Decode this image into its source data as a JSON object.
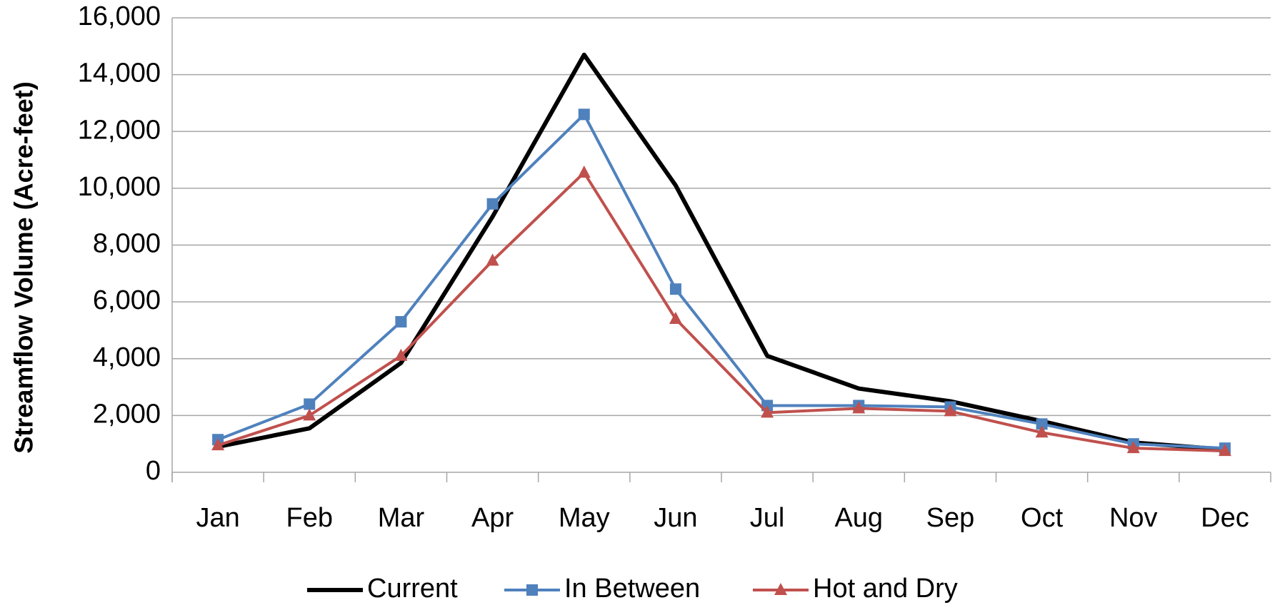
{
  "chart_data": {
    "type": "line",
    "y_label": "Streamflow Volume (Acre-feet)",
    "categories": [
      "Jan",
      "Feb",
      "Mar",
      "Apr",
      "May",
      "Jun",
      "Jul",
      "Aug",
      "Sep",
      "Oct",
      "Nov",
      "Dec"
    ],
    "series": [
      {
        "name": "Current",
        "color": "#000000",
        "marker": "none",
        "values": [
          900,
          1550,
          3850,
          9000,
          14700,
          10100,
          4100,
          2950,
          2500,
          1800,
          1050,
          800
        ]
      },
      {
        "name": "In Between",
        "color": "#4f81bd",
        "marker": "square",
        "values": [
          1150,
          2400,
          5300,
          9450,
          12600,
          6450,
          2350,
          2350,
          2300,
          1700,
          1000,
          850
        ]
      },
      {
        "name": "Hot and Dry",
        "color": "#c0504d",
        "marker": "triangle",
        "values": [
          950,
          2000,
          4100,
          7450,
          10550,
          5400,
          2100,
          2250,
          2150,
          1400,
          850,
          750
        ]
      }
    ],
    "ylim": [
      0,
      16000
    ],
    "yticks": [
      0,
      {
        "value": 2000,
        "label": "2,000"
      },
      {
        "value": 4000,
        "label": "4,000"
      },
      {
        "value": 6000,
        "label": "6,000"
      },
      {
        "value": 8000,
        "label": "8,000"
      },
      {
        "value": 10000,
        "label": "10,000"
      },
      {
        "value": 12000,
        "label": "12,000"
      },
      {
        "value": 14000,
        "label": "14,000"
      },
      {
        "value": 16000,
        "label": "16,000"
      }
    ],
    "grid": true,
    "legend": "bottom"
  }
}
